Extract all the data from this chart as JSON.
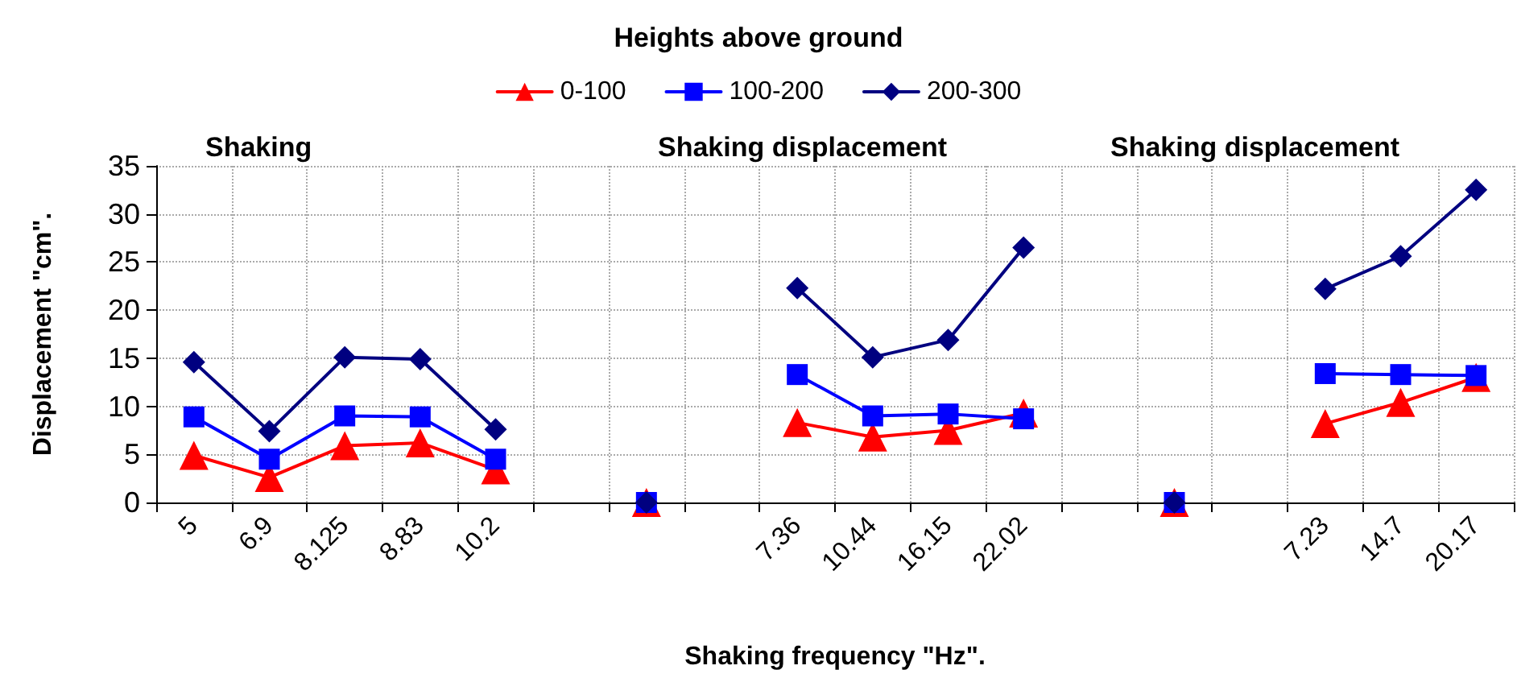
{
  "chart_data": {
    "type": "line",
    "legend_title": "Heights above ground",
    "xlabel": "Shaking frequency \"Hz\".",
    "ylabel": "Displacement \"cm\".",
    "annotations": [
      "Shaking",
      "Shaking displacement",
      "Shaking displacement"
    ],
    "categories": [
      "5",
      "6.9",
      "8.125",
      "8.83",
      "10.2",
      null,
      null,
      null,
      "7.36",
      "10.44",
      "16.15",
      "22.02",
      null,
      null,
      null,
      "7.23",
      "14.7",
      "20.17"
    ],
    "series": [
      {
        "name": "0-100",
        "color": "#ff0000",
        "marker": "triangle",
        "values": [
          4.9,
          2.6,
          5.9,
          6.2,
          3.4,
          null,
          0,
          null,
          8.3,
          6.8,
          7.5,
          9.3,
          null,
          0,
          null,
          8.2,
          10.4,
          13.0
        ]
      },
      {
        "name": "100-200",
        "color": "#0000ff",
        "marker": "square",
        "values": [
          8.9,
          4.5,
          9.0,
          8.9,
          4.5,
          null,
          0,
          null,
          13.3,
          9.0,
          9.2,
          8.7,
          null,
          0,
          null,
          13.4,
          13.3,
          13.2
        ]
      },
      {
        "name": "200-300",
        "color": "#000080",
        "marker": "diamond",
        "values": [
          14.6,
          7.4,
          15.1,
          14.9,
          7.6,
          null,
          0,
          null,
          22.3,
          15.1,
          16.9,
          26.5,
          null,
          0,
          null,
          22.2,
          25.6,
          32.5
        ]
      }
    ],
    "ylim": [
      0,
      35
    ],
    "yticks": [
      0,
      5,
      10,
      15,
      20,
      25,
      30,
      35
    ],
    "grid": true,
    "legend": "top",
    "line_style": "solid"
  }
}
